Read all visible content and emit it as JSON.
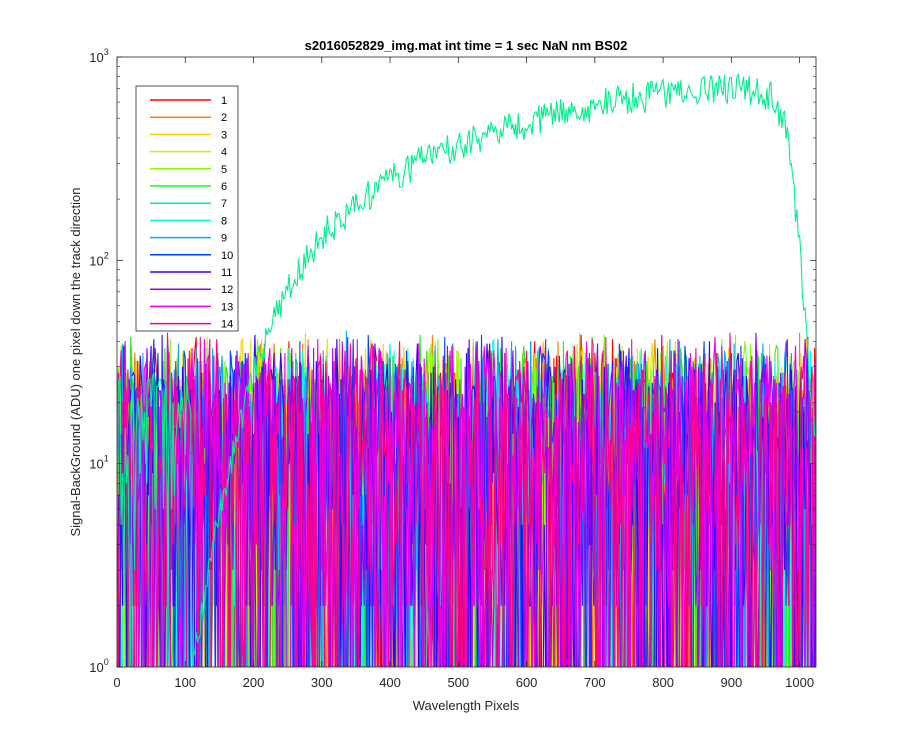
{
  "chart_data": {
    "type": "line",
    "title": "s2016052829_img.mat int time = 1 sec  NaN nm BS02",
    "xlabel": "Wavelength Pixels",
    "ylabel": "Signal-BackGround (ADU) one pixel down the track direction",
    "xlim": [
      0,
      1024
    ],
    "ylim": [
      1,
      1000
    ],
    "yscale": "log",
    "grid": false,
    "legend_position": "top-left",
    "x_ticks": [
      "0",
      "100",
      "200",
      "300",
      "400",
      "500",
      "600",
      "700",
      "800",
      "900",
      "1000"
    ],
    "x_tick_values": [
      0,
      100,
      200,
      300,
      400,
      500,
      600,
      700,
      800,
      900,
      1000
    ],
    "y_ticks": [
      {
        "base": "10",
        "exp": "0",
        "value": 1
      },
      {
        "base": "10",
        "exp": "1",
        "value": 10
      },
      {
        "base": "10",
        "exp": "2",
        "value": 100
      },
      {
        "base": "10",
        "exp": "3",
        "value": 1000
      }
    ],
    "series": [
      {
        "name": "1",
        "color": "#ff0000",
        "kind": "noise"
      },
      {
        "name": "2",
        "color": "#ff7f00",
        "kind": "noise"
      },
      {
        "name": "3",
        "color": "#ffcc00",
        "kind": "noise"
      },
      {
        "name": "4",
        "color": "#c8f000",
        "kind": "noise"
      },
      {
        "name": "5",
        "color": "#7fff00",
        "kind": "noise"
      },
      {
        "name": "6",
        "color": "#22ee22",
        "kind": "noise"
      },
      {
        "name": "7",
        "color": "#00f08c",
        "kind": "signal",
        "profile_x": [
          110,
          150,
          200,
          250,
          300,
          350,
          400,
          450,
          500,
          550,
          600,
          650,
          700,
          750,
          800,
          850,
          900,
          940,
          960,
          980,
          1000,
          1010,
          1020,
          1024
        ],
        "profile_y": [
          1,
          6,
          28,
          75,
          135,
          190,
          255,
          320,
          370,
          420,
          480,
          530,
          590,
          630,
          660,
          690,
          700,
          690,
          640,
          450,
          120,
          40,
          18,
          15
        ]
      },
      {
        "name": "8",
        "color": "#00ffee",
        "kind": "noise"
      },
      {
        "name": "9",
        "color": "#00aaff",
        "kind": "noise"
      },
      {
        "name": "10",
        "color": "#0040ff",
        "kind": "noise"
      },
      {
        "name": "11",
        "color": "#3300ff",
        "kind": "noise"
      },
      {
        "name": "12",
        "color": "#9900ff",
        "kind": "noise"
      },
      {
        "name": "13",
        "color": "#ee00ee",
        "kind": "noise"
      },
      {
        "name": "14",
        "color": "#ff0088",
        "kind": "noise"
      }
    ],
    "noise_range": [
      1,
      45
    ]
  }
}
